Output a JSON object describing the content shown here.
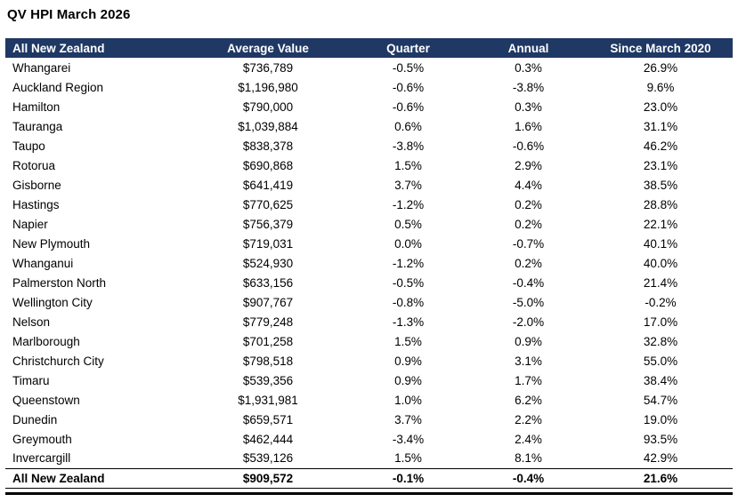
{
  "title": "QV HPI March 2026",
  "colors": {
    "header_bg": "#1F3864",
    "header_text": "#FFFFFF",
    "border": "#000000"
  },
  "chart_data": {
    "type": "table",
    "title": "QV HPI March 2026",
    "columns": [
      "All New Zealand",
      "Average Value",
      "Quarter",
      "Annual",
      "Since March 2020"
    ],
    "rows": [
      [
        "Whangarei",
        "$736,789",
        "-0.5%",
        "0.3%",
        "26.9%"
      ],
      [
        "Auckland Region",
        "$1,196,980",
        "-0.6%",
        "-3.8%",
        "9.6%"
      ],
      [
        "Hamilton",
        "$790,000",
        "-0.6%",
        "0.3%",
        "23.0%"
      ],
      [
        "Tauranga",
        "$1,039,884",
        "0.6%",
        "1.6%",
        "31.1%"
      ],
      [
        "Taupo",
        "$838,378",
        "-3.8%",
        "-0.6%",
        "46.2%"
      ],
      [
        "Rotorua",
        "$690,868",
        "1.5%",
        "2.9%",
        "23.1%"
      ],
      [
        "Gisborne",
        "$641,419",
        "3.7%",
        "4.4%",
        "38.5%"
      ],
      [
        "Hastings",
        "$770,625",
        "-1.2%",
        "0.2%",
        "28.8%"
      ],
      [
        "Napier",
        "$756,379",
        "0.5%",
        "0.2%",
        "22.1%"
      ],
      [
        "New Plymouth",
        "$719,031",
        "0.0%",
        "-0.7%",
        "40.1%"
      ],
      [
        "Whanganui",
        "$524,930",
        "-1.2%",
        "0.2%",
        "40.0%"
      ],
      [
        "Palmerston North",
        "$633,156",
        "-0.5%",
        "-0.4%",
        "21.4%"
      ],
      [
        "Wellington City",
        "$907,767",
        "-0.8%",
        "-5.0%",
        "-0.2%"
      ],
      [
        "Nelson",
        "$779,248",
        "-1.3%",
        "-2.0%",
        "17.0%"
      ],
      [
        "Marlborough",
        "$701,258",
        "1.5%",
        "0.9%",
        "32.8%"
      ],
      [
        "Christchurch City",
        "$798,518",
        "0.9%",
        "3.1%",
        "55.0%"
      ],
      [
        "Timaru",
        "$539,356",
        "0.9%",
        "1.7%",
        "38.4%"
      ],
      [
        "Queenstown",
        "$1,931,981",
        "1.0%",
        "6.2%",
        "54.7%"
      ],
      [
        "Dunedin",
        "$659,571",
        "3.7%",
        "2.2%",
        "19.0%"
      ],
      [
        "Greymouth",
        "$462,444",
        "-3.4%",
        "2.4%",
        "93.5%"
      ],
      [
        "Invercargill",
        "$539,126",
        "1.5%",
        "8.1%",
        "42.9%"
      ]
    ],
    "footer": [
      "All New Zealand",
      "$909,572",
      "-0.1%",
      "-0.4%",
      "21.6%"
    ]
  }
}
